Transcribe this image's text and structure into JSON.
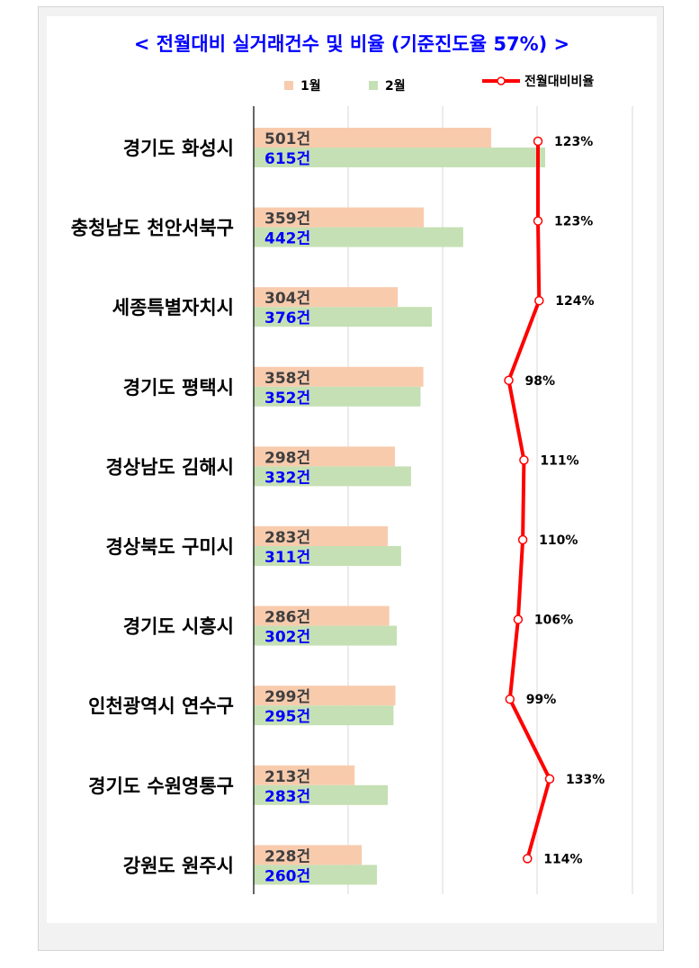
{
  "chart_data": {
    "type": "bar",
    "orientation": "horizontal",
    "title": "< 전월대비 실거래건수 및 비율 (기준진도율 57%) >",
    "categories": [
      "경기도 화성시",
      "충청남도 천안서북구",
      "세종특별자치시",
      "경기도 평택시",
      "경상남도 김해시",
      "경상북도 구미시",
      "경기도 시흥시",
      "인천광역시 연수구",
      "경기도 수원영통구",
      "강원도 원주시"
    ],
    "series": [
      {
        "name": "1월",
        "values": [
          501,
          359,
          304,
          358,
          298,
          283,
          286,
          299,
          213,
          228
        ],
        "labels": [
          "501건",
          "359건",
          "304건",
          "358건",
          "298건",
          "283건",
          "286건",
          "299건",
          "213건",
          "228건"
        ],
        "color": "#f8cbad"
      },
      {
        "name": "2월",
        "values": [
          615,
          442,
          376,
          352,
          332,
          311,
          302,
          295,
          283,
          260
        ],
        "labels": [
          "615건",
          "442건",
          "376건",
          "352건",
          "332건",
          "311건",
          "302건",
          "295건",
          "283건",
          "260건"
        ],
        "color": "#c5e0b4"
      }
    ],
    "line_series": {
      "name": "전월대비비율",
      "values": [
        123,
        123,
        124,
        98,
        111,
        110,
        106,
        99,
        133,
        114
      ],
      "labels": [
        "123%",
        "123%",
        "124%",
        "98%",
        "111%",
        "110%",
        "106%",
        "99%",
        "133%",
        "114%"
      ],
      "color": "#ff0000"
    },
    "legend_position": "top",
    "grid": true
  }
}
